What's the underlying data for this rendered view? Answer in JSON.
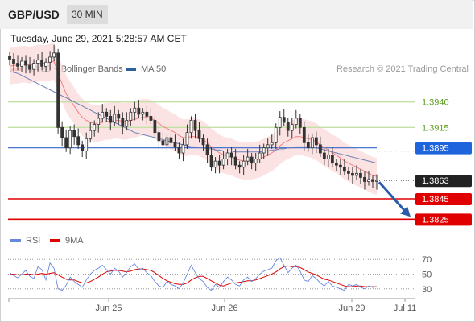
{
  "header": {
    "symbol": "GBP/USD",
    "timeframe": "30 MIN",
    "datetime": "Tuesday, June 29, 2021 5:28:57 AM CET"
  },
  "legend": {
    "items": [
      {
        "label": "MA 20 + Bollinger Bands",
        "color": "#f28c8c"
      },
      {
        "label": "MA 50",
        "color": "#2e5f9e"
      }
    ],
    "credit": "Research © 2021 Trading Central"
  },
  "rsi_legend": {
    "items": [
      {
        "label": "RSI",
        "color": "#6688dd"
      },
      {
        "label": "9MA",
        "color": "#e00000"
      }
    ]
  },
  "chart_data": {
    "type": "candlestick",
    "price_range": [
      1.3815,
      1.3965
    ],
    "levels": [
      {
        "value": 1.394,
        "label": "1.3940",
        "kind": "resistance",
        "color": "#8dc63f"
      },
      {
        "value": 1.3915,
        "label": "1.3915",
        "kind": "resistance",
        "color": "#8dc63f"
      },
      {
        "value": 1.3895,
        "label": "1.3895",
        "kind": "pivot",
        "color": "#3366cc"
      },
      {
        "value": 1.3863,
        "label": "1.3863",
        "kind": "last",
        "color": "#222222"
      },
      {
        "value": 1.3845,
        "label": "1.3845",
        "kind": "support",
        "color": "#e00000"
      },
      {
        "value": 1.3825,
        "label": "1.3825",
        "kind": "support",
        "color": "#e00000"
      }
    ],
    "x_labels": [
      "Jun 25",
      "Jun 26",
      "Jun 29",
      "Jul 11"
    ],
    "price_path": [
      1.3982,
      1.3978,
      1.3975,
      1.398,
      1.3976,
      1.3972,
      1.3978,
      1.3981,
      1.3975,
      1.3979,
      1.3984,
      1.3988,
      1.3915,
      1.3905,
      1.3895,
      1.3912,
      1.3906,
      1.3898,
      1.3892,
      1.3904,
      1.3912,
      1.3918,
      1.3924,
      1.393,
      1.3926,
      1.392,
      1.3928,
      1.3924,
      1.3916,
      1.3922,
      1.393,
      1.3934,
      1.3928,
      1.393,
      1.3926,
      1.3922,
      1.391,
      1.3902,
      1.3898,
      1.3905,
      1.39,
      1.3896,
      1.389,
      1.3898,
      1.391,
      1.3922,
      1.3912,
      1.3904,
      1.3898,
      1.3888,
      1.3876,
      1.3882,
      1.3878,
      1.3884,
      1.389,
      1.3886,
      1.3878,
      1.3876,
      1.3882,
      1.3886,
      1.388,
      1.3884,
      1.389,
      1.3895,
      1.3898,
      1.39,
      1.3915,
      1.3925,
      1.392,
      1.3912,
      1.3918,
      1.3924,
      1.3915,
      1.39,
      1.3895,
      1.3905,
      1.3898,
      1.389,
      1.3884,
      1.3888,
      1.388,
      1.3878,
      1.3876,
      1.3872,
      1.387,
      1.3868,
      1.387,
      1.3866,
      1.3862,
      1.3864,
      1.3862,
      1.3863
    ],
    "ma20_path": [
      1.3975,
      1.3976,
      1.3976,
      1.3977,
      1.3977,
      1.3976,
      1.3977,
      1.3978,
      1.3978,
      1.3978,
      1.3979,
      1.398,
      1.3968,
      1.3958,
      1.3948,
      1.3942,
      1.3936,
      1.393,
      1.3925,
      1.3922,
      1.392,
      1.3919,
      1.3919,
      1.392,
      1.3921,
      1.3921,
      1.3922,
      1.3922,
      1.3921,
      1.3921,
      1.3922,
      1.3923,
      1.3924,
      1.3925,
      1.3925,
      1.3924,
      1.3922,
      1.3919,
      1.3916,
      1.3914,
      1.3912,
      1.391,
      1.3907,
      1.3905,
      1.3905,
      1.3906,
      1.3906,
      1.3905,
      1.3903,
      1.39,
      1.3896,
      1.3893,
      1.389,
      1.3888,
      1.3887,
      1.3886,
      1.3884,
      1.3883,
      1.3882,
      1.3882,
      1.3882,
      1.3883,
      1.3884,
      1.3886,
      1.3888,
      1.389,
      1.3893,
      1.3897,
      1.39,
      1.3902,
      1.3904,
      1.3906,
      1.3906,
      1.3905,
      1.3904,
      1.3903,
      1.3901,
      1.3898,
      1.3895,
      1.3893,
      1.389,
      1.3888,
      1.3885,
      1.3882,
      1.388,
      1.3878,
      1.3876,
      1.3874,
      1.3872,
      1.387,
      1.3868,
      1.3867
    ],
    "bollinger_width": 0.0018,
    "ma50_path": [
      1.397,
      1.3969,
      1.3968,
      1.3966,
      1.3964,
      1.3962,
      1.396,
      1.3958,
      1.3956,
      1.3954,
      1.3952,
      1.395,
      1.3948,
      1.3946,
      1.3944,
      1.3942,
      1.394,
      1.3938,
      1.3936,
      1.3934,
      1.3932,
      1.393,
      1.3928,
      1.3926,
      1.3924,
      1.3922,
      1.392,
      1.3918,
      1.3916,
      1.3914,
      1.3912,
      1.391,
      1.3909,
      1.3908,
      1.3907,
      1.3906,
      1.3905,
      1.3904,
      1.3903,
      1.3902,
      1.3901,
      1.39,
      1.3899,
      1.3898,
      1.3897,
      1.3896,
      1.3896,
      1.3895,
      1.3895,
      1.3894,
      1.3894,
      1.3893,
      1.3893,
      1.3892,
      1.3892,
      1.3892,
      1.3891,
      1.3891,
      1.3891,
      1.3891,
      1.3891,
      1.3891,
      1.3891,
      1.3892,
      1.3892,
      1.3893,
      1.3893,
      1.3894,
      1.3894,
      1.3895,
      1.3895,
      1.3896,
      1.3896,
      1.3896,
      1.3896,
      1.3895,
      1.3895,
      1.3894,
      1.3893,
      1.3892,
      1.3891,
      1.389,
      1.3889,
      1.3888,
      1.3887,
      1.3886,
      1.3885,
      1.3884,
      1.3883,
      1.3882,
      1.3881,
      1.388
    ],
    "forecast": {
      "from": 1.3863,
      "to": 1.3825
    },
    "rsi": {
      "range": [
        20,
        80
      ],
      "ticks": [
        "70",
        "50",
        "30"
      ],
      "rsi_values": [
        52,
        48,
        45,
        50,
        55,
        47,
        44,
        60,
        56,
        42,
        65,
        58,
        30,
        28,
        35,
        46,
        40,
        36,
        32,
        42,
        50,
        55,
        58,
        62,
        56,
        50,
        58,
        54,
        46,
        52,
        60,
        64,
        56,
        58,
        52,
        48,
        40,
        34,
        32,
        40,
        36,
        34,
        30,
        38,
        50,
        62,
        52,
        44,
        40,
        32,
        28,
        36,
        32,
        40,
        46,
        42,
        36,
        34,
        42,
        46,
        40,
        44,
        50,
        54,
        56,
        58,
        68,
        72,
        62,
        52,
        58,
        62,
        54,
        42,
        40,
        48,
        44,
        38,
        34,
        40,
        34,
        32,
        30,
        28,
        36,
        34,
        36,
        32,
        30,
        34,
        32,
        33
      ],
      "ma9_values": [
        50,
        50,
        49,
        49,
        50,
        50,
        49,
        50,
        51,
        50,
        51,
        52,
        49,
        46,
        43,
        42,
        42,
        40,
        38,
        38,
        40,
        43,
        46,
        50,
        53,
        54,
        55,
        55,
        54,
        53,
        54,
        56,
        57,
        57,
        56,
        55,
        52,
        48,
        44,
        41,
        39,
        37,
        36,
        36,
        38,
        42,
        45,
        47,
        47,
        44,
        41,
        38,
        35,
        34,
        36,
        38,
        38,
        39,
        40,
        41,
        41,
        42,
        44,
        46,
        48,
        50,
        53,
        57,
        60,
        61,
        60,
        60,
        59,
        56,
        53,
        51,
        49,
        46,
        43,
        42,
        40,
        38,
        36,
        34,
        33,
        33,
        34,
        34,
        33,
        33,
        33,
        33
      ]
    }
  }
}
